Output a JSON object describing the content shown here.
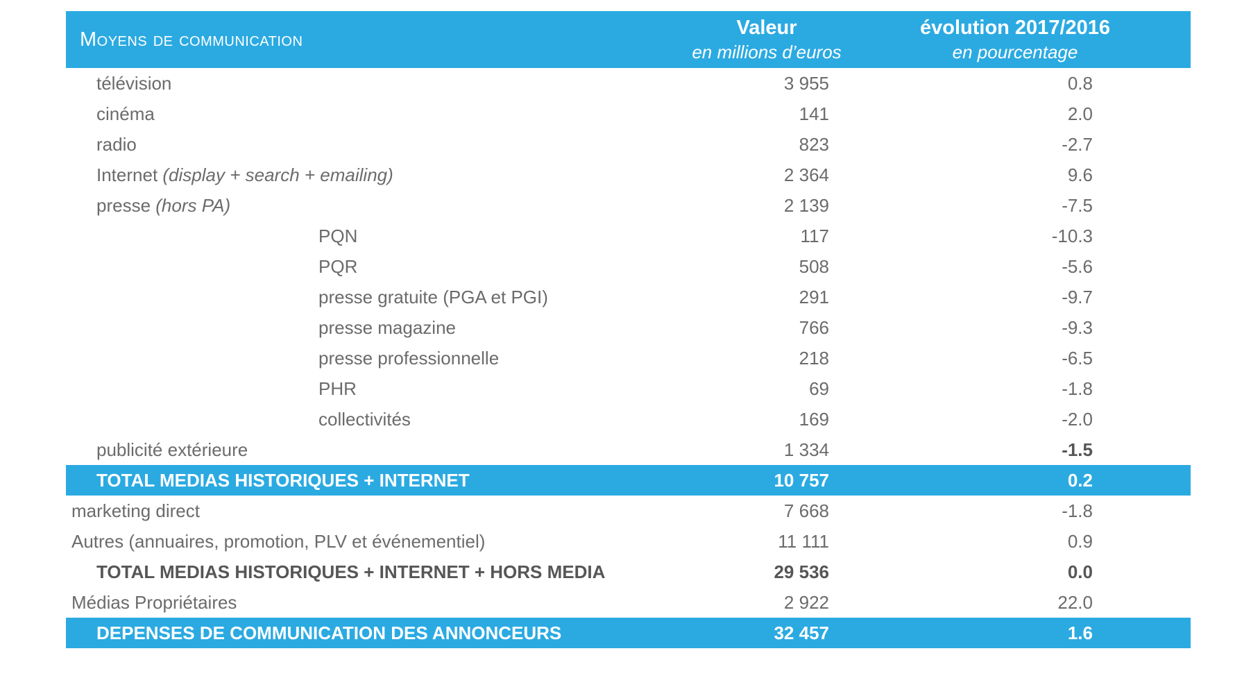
{
  "colors": {
    "accent_blue": "#2BAAE2",
    "row_text_gray": "#6B6B6B",
    "bold_text_gray": "#565656",
    "header_text": "#FFFFFF"
  },
  "table": {
    "header": {
      "col1": "Moyens de communication",
      "col2_title": "Valeur",
      "col2_subtitle": "en millions d’euros",
      "col3_title": "évolution 2017/2016",
      "col3_subtitle": "en pourcentage"
    },
    "rows": [
      {
        "label": "télévision",
        "label_italic": "",
        "value": "3 955",
        "evolution": "0.8",
        "indent": 1,
        "style": "normal"
      },
      {
        "label": "cinéma",
        "label_italic": "",
        "value": "141",
        "evolution": "2.0",
        "indent": 1,
        "style": "normal"
      },
      {
        "label": "radio",
        "label_italic": "",
        "value": "823",
        "evolution": "-2.7",
        "indent": 1,
        "style": "normal"
      },
      {
        "label": "Internet",
        "label_italic": " (display + search + emailing)",
        "value": "2 364",
        "evolution": "9.6",
        "indent": 1,
        "style": "normal"
      },
      {
        "label": "presse",
        "label_italic": " (hors PA)",
        "value": "2 139",
        "evolution": "-7.5",
        "indent": 1,
        "style": "normal"
      },
      {
        "label": "PQN",
        "label_italic": "",
        "value": "117",
        "evolution": "-10.3",
        "indent": 2,
        "style": "normal"
      },
      {
        "label": "PQR",
        "label_italic": "",
        "value": "508",
        "evolution": "-5.6",
        "indent": 2,
        "style": "normal"
      },
      {
        "label": "presse gratuite (PGA et PGI)",
        "label_italic": "",
        "value": "291",
        "evolution": "-9.7",
        "indent": 2,
        "style": "normal"
      },
      {
        "label": "presse magazine",
        "label_italic": "",
        "value": "766",
        "evolution": "-9.3",
        "indent": 2,
        "style": "normal"
      },
      {
        "label": "presse professionnelle",
        "label_italic": "",
        "value": "218",
        "evolution": "-6.5",
        "indent": 2,
        "style": "normal"
      },
      {
        "label": "PHR",
        "label_italic": "",
        "value": "69",
        "evolution": "-1.8",
        "indent": 2,
        "style": "normal"
      },
      {
        "label": "collectivités",
        "label_italic": "",
        "value": "169",
        "evolution": "-2.0",
        "indent": 2,
        "style": "normal"
      },
      {
        "label": "publicité extérieure",
        "label_italic": "",
        "value": "1 334",
        "evolution": "-1.5",
        "indent": 1,
        "style": "normal",
        "evolution_bold": true
      },
      {
        "label": "TOTAL MEDIAS HISTORIQUES + INTERNET",
        "label_italic": "",
        "value": "10 757",
        "evolution": "0.2",
        "indent": 1,
        "style": "blue"
      },
      {
        "label": "marketing direct",
        "label_italic": "",
        "value": "7 668",
        "evolution": "-1.8",
        "indent": 0,
        "style": "normal"
      },
      {
        "label": "Autres (annuaires, promotion, PLV et événementiel)",
        "label_italic": "",
        "value": "11 111",
        "evolution": "0.9",
        "indent": 0,
        "style": "normal"
      },
      {
        "label": "TOTAL MEDIAS HISTORIQUES + INTERNET + HORS MEDIA",
        "label_italic": "",
        "value": "29 536",
        "evolution": "0.0",
        "indent": 1,
        "style": "bold"
      },
      {
        "label": "Médias Propriétaires",
        "label_italic": "",
        "value": "2 922",
        "evolution": "22.0",
        "indent": 0,
        "style": "normal"
      },
      {
        "label": "DEPENSES DE COMMUNICATION DES ANNONCEURS",
        "label_italic": "",
        "value": "32 457",
        "evolution": "1.6",
        "indent": 1,
        "style": "blue"
      }
    ]
  }
}
